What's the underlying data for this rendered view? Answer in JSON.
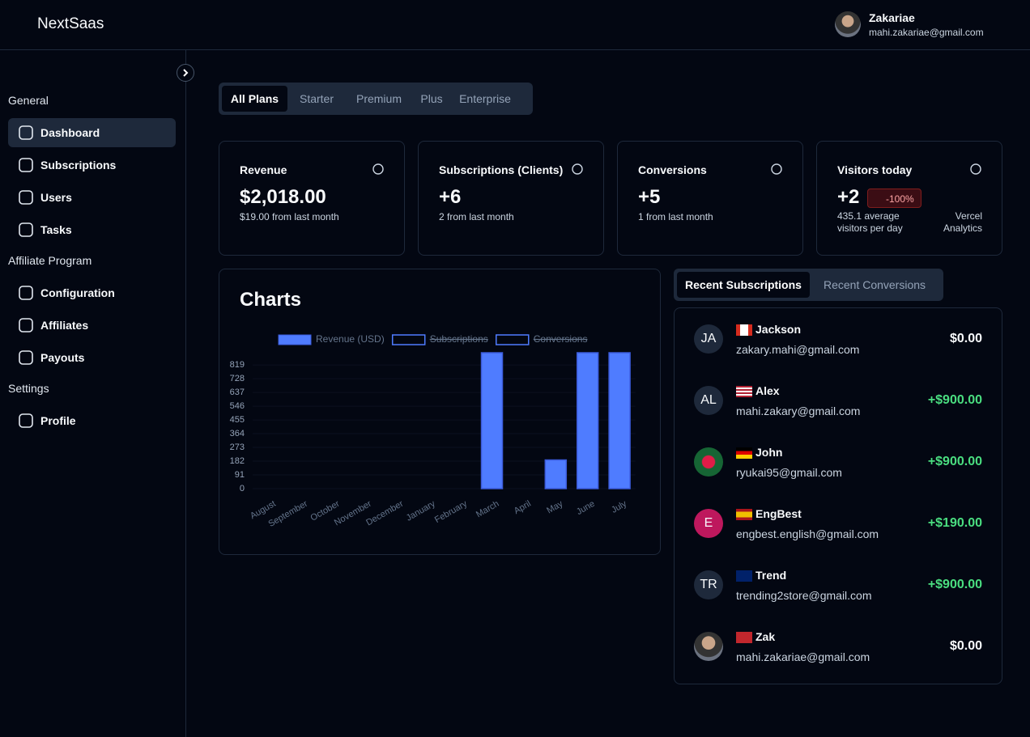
{
  "header": {
    "brand": "NextSaas",
    "user_name": "Zakariae",
    "user_email": "mahi.zakariae@gmail.com"
  },
  "sidebar": {
    "groups": [
      {
        "title": "General",
        "items": [
          "Dashboard",
          "Subscriptions",
          "Users",
          "Tasks"
        ]
      },
      {
        "title": "Affiliate Program",
        "items": [
          "Configuration",
          "Affiliates",
          "Payouts"
        ]
      },
      {
        "title": "Settings",
        "items": [
          "Profile"
        ]
      }
    ]
  },
  "plan_tabs": [
    "All Plans",
    "Starter",
    "Premium",
    "Plus",
    "Enterprise"
  ],
  "cards": [
    {
      "title": "Revenue",
      "value": "$2,018.00",
      "note": "$19.00 from last month"
    },
    {
      "title": "Subscriptions (Clients)",
      "value": "+6",
      "note": "2 from last month"
    },
    {
      "title": "Conversions",
      "value": "+5",
      "note": "1 from last month"
    },
    {
      "title": "Visitors today",
      "value": "+2",
      "badge": "-100%",
      "note": "435.1 average visitors per day",
      "link": "Vercel Analytics"
    }
  ],
  "charts_title": "Charts",
  "chart_data": {
    "type": "bar",
    "categories": [
      "August",
      "September",
      "October",
      "November",
      "December",
      "January",
      "February",
      "March",
      "April",
      "May",
      "June",
      "July"
    ],
    "series": [
      {
        "name": "Revenue (USD)",
        "color": "#4f7cff",
        "values": [
          0,
          0,
          0,
          0,
          0,
          0,
          0,
          900,
          0,
          190,
          900,
          900
        ]
      }
    ],
    "hidden_legend": [
      "Subscriptions",
      "Conversions"
    ],
    "ylim": [
      0,
      900
    ],
    "yticks": [
      0,
      91,
      182,
      273,
      364,
      455,
      546,
      637,
      728,
      819
    ]
  },
  "list_tabs": [
    "Recent Subscriptions",
    "Recent Conversions"
  ],
  "recent": [
    {
      "initials": "JA",
      "name": "Jackson",
      "email": "zakary.mahi@gmail.com",
      "amount": "$0.00"
    },
    {
      "initials": "AL",
      "name": "Alex",
      "email": "mahi.zakary@gmail.com",
      "amount": "+$900.00"
    },
    {
      "initials": null,
      "name": "John",
      "email": "ryukai95@gmail.com",
      "amount": "+$900.00"
    },
    {
      "initials": "E",
      "name": "EngBest",
      "email": "engbest.english@gmail.com",
      "amount": "+$190.00"
    },
    {
      "initials": "TR",
      "name": "Trend",
      "email": "trending2store@gmail.com",
      "amount": "+$900.00"
    },
    {
      "initials": null,
      "name": "Zak",
      "email": "mahi.zakariae@gmail.com",
      "amount": "$0.00"
    }
  ]
}
